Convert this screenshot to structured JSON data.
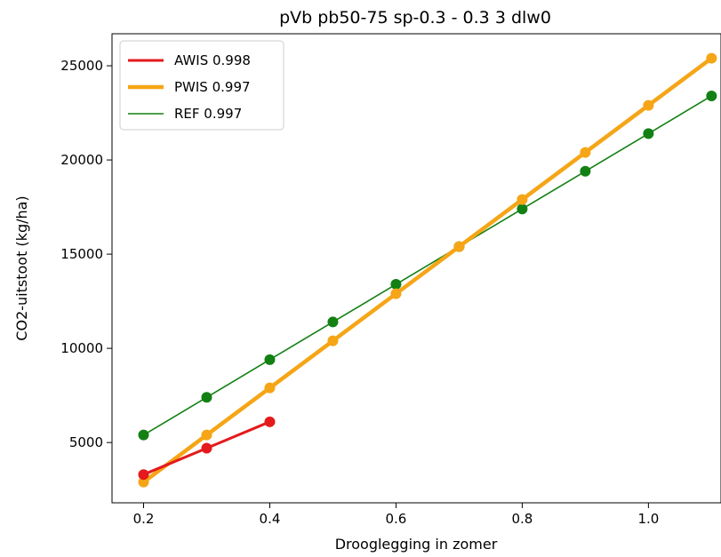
{
  "chart_data": {
    "type": "line",
    "title": "pVb pb50-75 sp-0.3 - 0.3 3 dlw0",
    "xlabel": "Drooglegging in zomer",
    "ylabel": "CO2-uitstoot (kg/ha)",
    "xlim": [
      0.15,
      1.115
    ],
    "ylim": [
      1800,
      26700
    ],
    "xticks": [
      0.2,
      0.4,
      0.6,
      0.8,
      1.0
    ],
    "xtick_labels": [
      "0.2",
      "0.4",
      "0.6",
      "0.8",
      "1.0"
    ],
    "yticks": [
      5000,
      10000,
      15000,
      20000,
      25000
    ],
    "ytick_labels": [
      "5000",
      "10000",
      "15000",
      "20000",
      "25000"
    ],
    "grid": false,
    "legend_position": "top-left",
    "series": [
      {
        "name": "AWIS 0.998",
        "color": "#e41a1c",
        "line_width": "medium",
        "x": [
          0.2,
          0.3,
          0.4
        ],
        "y": [
          3300,
          4700,
          6100
        ]
      },
      {
        "name": "PWIS 0.997",
        "color": "#f5a516",
        "line_width": "thick",
        "x": [
          0.2,
          0.3,
          0.4,
          0.5,
          0.6,
          0.7,
          0.8,
          0.9,
          1.0,
          1.1
        ],
        "y": [
          2900,
          5400,
          7900,
          10400,
          12900,
          15400,
          17900,
          20400,
          22900,
          25400
        ]
      },
      {
        "name": "REF 0.997",
        "color": "#138013",
        "line_width": "thin",
        "x": [
          0.2,
          0.3,
          0.4,
          0.5,
          0.6,
          0.7,
          0.8,
          0.9,
          1.0,
          1.1
        ],
        "y": [
          5400,
          7400,
          9400,
          11400,
          13400,
          15400,
          17400,
          19400,
          21400,
          23400
        ]
      }
    ]
  }
}
